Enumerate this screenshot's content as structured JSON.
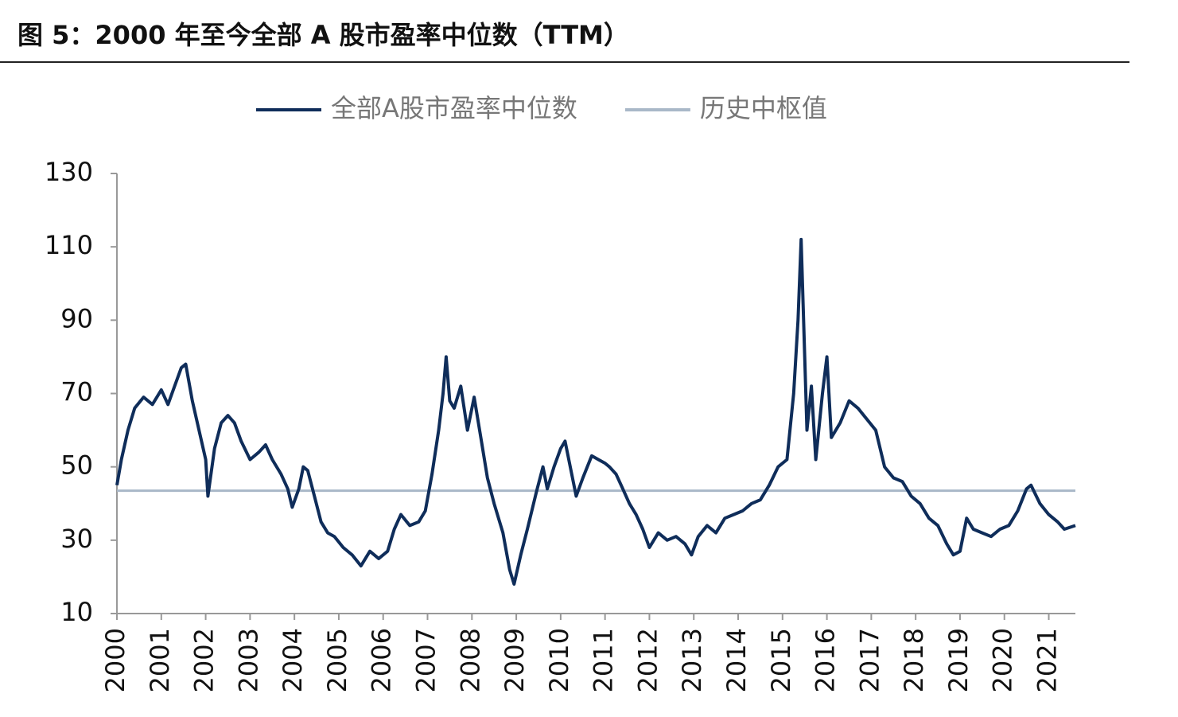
{
  "chart_data": {
    "type": "line",
    "title": "图 5：2000 年至今全部 A 股市盈率中位数（TTM）",
    "x": [
      2000.0,
      2000.1,
      2000.25,
      2000.4,
      2000.6,
      2000.8,
      2001.0,
      2001.15,
      2001.3,
      2001.45,
      2001.55,
      2001.7,
      2001.85,
      2002.0,
      2002.05,
      2002.2,
      2002.35,
      2002.5,
      2002.65,
      2002.8,
      2003.0,
      2003.2,
      2003.35,
      2003.5,
      2003.7,
      2003.85,
      2003.95,
      2004.1,
      2004.2,
      2004.3,
      2004.45,
      2004.6,
      2004.75,
      2004.9,
      2005.1,
      2005.3,
      2005.5,
      2005.7,
      2005.9,
      2006.1,
      2006.25,
      2006.4,
      2006.6,
      2006.8,
      2006.95,
      2007.1,
      2007.25,
      2007.35,
      2007.42,
      2007.5,
      2007.6,
      2007.75,
      2007.9,
      2008.05,
      2008.2,
      2008.35,
      2008.5,
      2008.7,
      2008.85,
      2008.95,
      2009.1,
      2009.25,
      2009.45,
      2009.6,
      2009.7,
      2009.85,
      2010.0,
      2010.1,
      2010.25,
      2010.35,
      2010.5,
      2010.7,
      2010.85,
      2011.0,
      2011.1,
      2011.25,
      2011.4,
      2011.55,
      2011.7,
      2011.85,
      2012.0,
      2012.2,
      2012.4,
      2012.6,
      2012.8,
      2012.95,
      2013.1,
      2013.3,
      2013.5,
      2013.7,
      2013.9,
      2014.1,
      2014.3,
      2014.5,
      2014.7,
      2014.9,
      2015.1,
      2015.25,
      2015.35,
      2015.42,
      2015.5,
      2015.55,
      2015.65,
      2015.75,
      2015.9,
      2016.0,
      2016.1,
      2016.3,
      2016.5,
      2016.7,
      2016.9,
      2017.1,
      2017.3,
      2017.5,
      2017.7,
      2017.9,
      2018.1,
      2018.3,
      2018.5,
      2018.7,
      2018.85,
      2019.0,
      2019.15,
      2019.3,
      2019.5,
      2019.7,
      2019.9,
      2020.1,
      2020.3,
      2020.5,
      2020.6,
      2020.8,
      2021.0,
      2021.2,
      2021.35,
      2021.6
    ],
    "series": [
      {
        "name": "全部A股市盈率中位数",
        "color": "#0f2d5a",
        "values": [
          45,
          52,
          60,
          66,
          69,
          67,
          71,
          67,
          72,
          77,
          78,
          68,
          60,
          52,
          42,
          55,
          62,
          64,
          62,
          57,
          52,
          54,
          56,
          52,
          48,
          44,
          39,
          44,
          50,
          49,
          42,
          35,
          32,
          31,
          28,
          26,
          23,
          27,
          25,
          27,
          33,
          37,
          34,
          35,
          38,
          48,
          60,
          70,
          80,
          68,
          66,
          72,
          60,
          69,
          58,
          47,
          40,
          32,
          22,
          18,
          26,
          33,
          43,
          50,
          44,
          50,
          55,
          57,
          48,
          42,
          47,
          53,
          52,
          51,
          50,
          48,
          44,
          40,
          37,
          33,
          28,
          32,
          30,
          31,
          29,
          26,
          31,
          34,
          32,
          36,
          37,
          38,
          40,
          41,
          45,
          50,
          52,
          70,
          90,
          112,
          80,
          60,
          72,
          52,
          70,
          80,
          58,
          62,
          68,
          66,
          63,
          60,
          50,
          47,
          46,
          42,
          40,
          36,
          34,
          29,
          26,
          27,
          36,
          33,
          32,
          31,
          33,
          34,
          38,
          44,
          45,
          40,
          37,
          35,
          33,
          34
        ]
      },
      {
        "name": "历史中枢值",
        "color": "#a9b8c8",
        "x": [
          2000.0,
          2021.6
        ],
        "values": [
          43.5,
          43.5
        ]
      }
    ],
    "xlim": [
      2000,
      2021.6
    ],
    "xticks": [
      2000,
      2001,
      2002,
      2003,
      2004,
      2005,
      2006,
      2007,
      2008,
      2009,
      2010,
      2011,
      2012,
      2013,
      2014,
      2015,
      2016,
      2017,
      2018,
      2019,
      2020,
      2021
    ],
    "ylim": [
      10,
      130
    ],
    "yticks": [
      10,
      30,
      50,
      70,
      90,
      110,
      130
    ],
    "legend": "top"
  }
}
